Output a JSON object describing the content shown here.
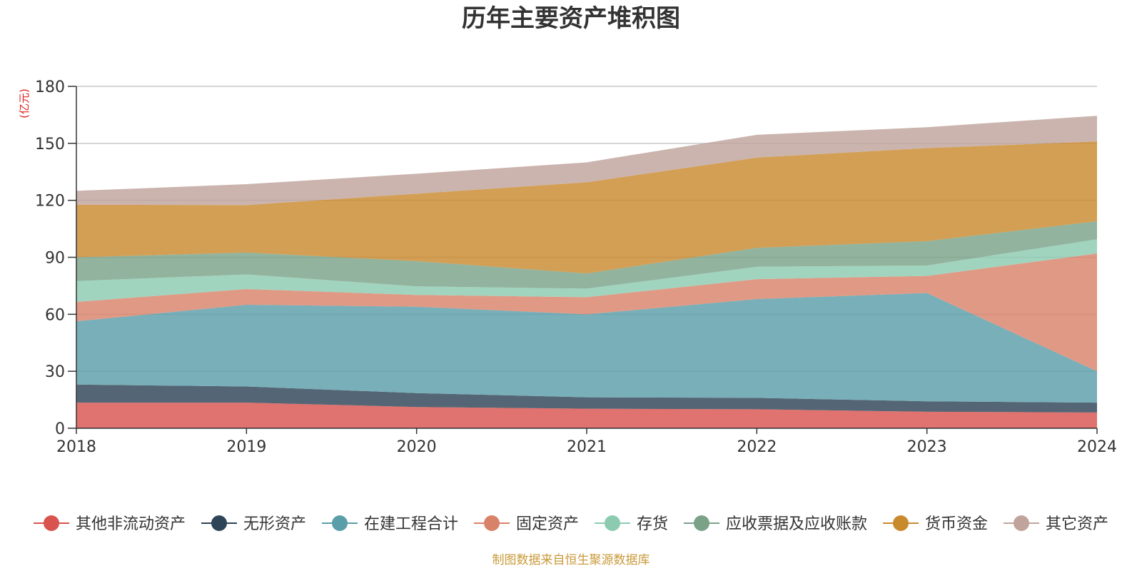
{
  "chart_data": {
    "type": "area",
    "stacked": true,
    "title": "历年主要资产堆积图",
    "unit_label": "(亿元)",
    "xlabel": "",
    "ylabel": "",
    "ylim": [
      0,
      180
    ],
    "yticks": [
      "0",
      "30",
      "60",
      "90",
      "120",
      "150",
      "180"
    ],
    "categories": [
      "2018",
      "2019",
      "2020",
      "2021",
      "2022",
      "2023",
      "2024"
    ],
    "grid": true,
    "legend_position": "bottom",
    "series": [
      {
        "name": "其他非流动资产",
        "color": "#d9534f",
        "values": [
          13.5,
          13.5,
          11.2,
          10.3,
          10.0,
          8.7,
          8.3
        ]
      },
      {
        "name": "无形资产",
        "color": "#2e4457",
        "values": [
          9.5,
          8.5,
          7.3,
          6.0,
          6.0,
          5.5,
          5.2
        ]
      },
      {
        "name": "在建工程合计",
        "color": "#5b9eaa",
        "values": [
          33.3,
          43.0,
          45.5,
          43.7,
          52.0,
          57.0,
          16.5
        ]
      },
      {
        "name": "固定资产",
        "color": "#d9826a",
        "values": [
          10.2,
          8.3,
          6.2,
          9.0,
          10.5,
          9.0,
          62.0
        ]
      },
      {
        "name": "存货",
        "color": "#8ccbb0",
        "values": [
          11.0,
          7.7,
          4.5,
          4.5,
          6.5,
          5.5,
          7.5
        ]
      },
      {
        "name": "应收票据及应收账款",
        "color": "#7aa287",
        "values": [
          12.5,
          11.5,
          13.3,
          8.0,
          10.0,
          12.8,
          9.5
        ]
      },
      {
        "name": "货币资金",
        "color": "#c98a2e",
        "values": [
          27.7,
          25.0,
          35.5,
          48.0,
          47.5,
          49.0,
          42.0
        ]
      },
      {
        "name": "其它资产",
        "color": "#c0a49c",
        "values": [
          7.3,
          11.0,
          10.5,
          10.5,
          12.0,
          11.0,
          13.5
        ]
      }
    ]
  },
  "source_note": "制图数据来自恒生聚源数据库"
}
